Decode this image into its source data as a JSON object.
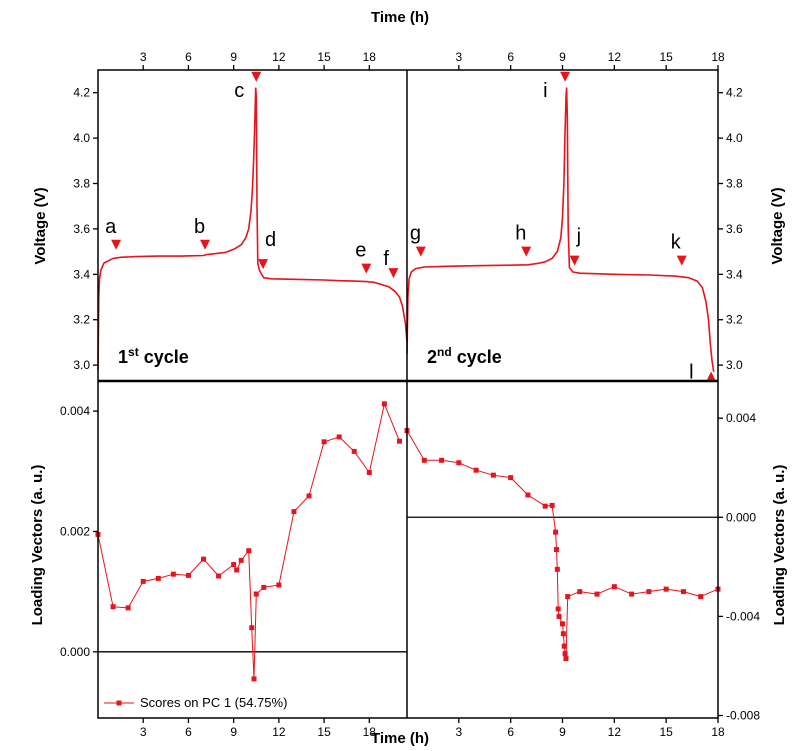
{
  "chart_data": {
    "type": "line",
    "shared": {
      "top_xlabel": "Time (h)",
      "bottom_xlabel": "Time (h)",
      "line_color": "#e8141b",
      "triangle_color": "#e8141b"
    },
    "panels": [
      {
        "id": "voltage-cycle1",
        "ylabel": "Voltage (V)",
        "cycle_label": {
          "num": "1",
          "sup": "st",
          "rest": " cycle"
        },
        "xlim": [
          0,
          20.5
        ],
        "ylim": [
          2.93,
          4.3
        ],
        "xticks": [
          3,
          6,
          9,
          12,
          15,
          18
        ],
        "yticks": [
          3.0,
          3.2,
          3.4,
          3.6,
          3.8,
          4.0,
          4.2
        ],
        "ytick_labels": [
          "3.0",
          "3.2",
          "3.4",
          "3.6",
          "3.8",
          "4.0",
          "4.2"
        ],
        "series": [
          {
            "x": [
              0,
              0.05,
              0.1,
              0.2,
              0.4,
              0.7,
              1.0,
              1.5,
              2.5,
              4,
              5.5,
              6.5,
              7.0,
              7.2,
              7.6,
              8.0,
              8.5,
              9.0,
              9.5,
              9.8,
              10.0,
              10.15,
              10.25,
              10.32,
              10.38,
              10.43,
              10.46,
              10.5,
              10.55,
              10.6,
              10.7,
              10.85,
              11.0,
              11.5,
              13,
              15,
              16,
              17,
              17.8,
              18.3,
              18.8,
              19.3,
              19.7,
              20.0,
              20.2,
              20.4,
              20.5
            ],
            "y": [
              2.98,
              3.3,
              3.38,
              3.42,
              3.45,
              3.46,
              3.47,
              3.475,
              3.478,
              3.48,
              3.48,
              3.482,
              3.483,
              3.487,
              3.49,
              3.493,
              3.497,
              3.51,
              3.53,
              3.56,
              3.6,
              3.68,
              3.78,
              3.9,
              4.02,
              4.14,
              4.22,
              4.18,
              3.7,
              3.45,
              3.42,
              3.4,
              3.385,
              3.38,
              3.378,
              3.375,
              3.372,
              3.37,
              3.368,
              3.365,
              3.355,
              3.345,
              3.325,
              3.3,
              3.26,
              3.18,
              3.1
            ]
          }
        ],
        "markers": [
          {
            "label": "a",
            "x": 1.2,
            "y": 3.53
          },
          {
            "label": "b",
            "x": 7.1,
            "y": 3.53
          },
          {
            "label": "c",
            "x": 10.5,
            "y": 4.27
          },
          {
            "label": "d",
            "x": 10.95,
            "y": 3.445
          },
          {
            "label": "e",
            "x": 17.8,
            "y": 3.425
          },
          {
            "label": "f",
            "x": 19.6,
            "y": 3.405
          }
        ]
      },
      {
        "id": "voltage-cycle2",
        "ylabel": "Voltage (V)",
        "cycle_label": {
          "num": "2",
          "sup": "nd",
          "rest": " cycle"
        },
        "xlim": [
          0,
          18
        ],
        "ylim": [
          2.93,
          4.3
        ],
        "xticks": [
          3,
          6,
          9,
          12,
          15,
          18
        ],
        "yticks": [
          3.0,
          3.2,
          3.4,
          3.6,
          3.8,
          4.0,
          4.2
        ],
        "ytick_labels": [
          "3.0",
          "3.2",
          "3.4",
          "3.6",
          "3.8",
          "4.0",
          "4.2"
        ],
        "series": [
          {
            "x": [
              0,
              0.05,
              0.12,
              0.25,
              0.5,
              1.0,
              2,
              4,
              6,
              7,
              7.5,
              8.0,
              8.4,
              8.7,
              8.9,
              9.0,
              9.08,
              9.14,
              9.2,
              9.24,
              9.28,
              9.33,
              9.4,
              9.6,
              10,
              12,
              14,
              15.5,
              16.3,
              16.8,
              17.1,
              17.3,
              17.45,
              17.55,
              17.65,
              17.75
            ],
            "y": [
              3.05,
              3.3,
              3.38,
              3.41,
              3.425,
              3.432,
              3.435,
              3.438,
              3.44,
              3.442,
              3.447,
              3.455,
              3.47,
              3.5,
              3.56,
              3.65,
              3.8,
              4.0,
              4.18,
              4.22,
              4.1,
              3.6,
              3.43,
              3.41,
              3.405,
              3.4,
              3.397,
              3.392,
              3.385,
              3.37,
              3.34,
              3.28,
              3.2,
              3.1,
              3.02,
              2.97
            ]
          }
        ],
        "markers": [
          {
            "label": "g",
            "x": 0.8,
            "y": 3.5
          },
          {
            "label": "h",
            "x": 6.9,
            "y": 3.5
          },
          {
            "label": "i",
            "x": 9.15,
            "y": 4.27
          },
          {
            "label": "j",
            "x": 9.7,
            "y": 3.46
          },
          {
            "label": "k",
            "x": 15.9,
            "y": 3.46
          },
          {
            "label": "l",
            "x": 17.6,
            "y": 2.95,
            "pointing": "up"
          }
        ]
      },
      {
        "id": "loading-cycle1",
        "ylabel": "Loading Vectors (a. u.)",
        "xlim": [
          0,
          20.5
        ],
        "ylim": [
          -0.0011,
          0.0045
        ],
        "xticks": [
          3,
          6,
          9,
          12,
          15,
          18
        ],
        "yticks": [
          0.0,
          0.002,
          0.004
        ],
        "ytick_labels": [
          "0.000",
          "0.002",
          "0.004"
        ],
        "zero_line": 0.0,
        "series": [
          {
            "name": "Scores on PC 1 (54.75%)",
            "x": [
              0,
              1,
              2,
              3,
              4,
              5,
              6,
              7,
              8,
              9,
              9.2,
              9.5,
              10,
              10.2,
              10.35,
              10.5,
              11,
              12,
              13,
              14,
              15,
              16,
              17,
              18,
              19,
              20
            ],
            "y": [
              0.00195,
              0.00075,
              0.00073,
              0.00117,
              0.00122,
              0.00129,
              0.00127,
              0.00154,
              0.00126,
              0.00145,
              0.00136,
              0.00152,
              0.00168,
              0.0004,
              -0.00045,
              0.00096,
              0.00107,
              0.00111,
              0.00233,
              0.00259,
              0.00349,
              0.00357,
              0.00333,
              0.00298,
              0.00412,
              0.0035
            ]
          }
        ],
        "legend": {
          "text": "Scores on PC 1 (54.75%)",
          "position": "bottom-left"
        }
      },
      {
        "id": "loading-cycle2",
        "ylabel": "Loading Vectors (a. u.)",
        "xlim": [
          0,
          18
        ],
        "ylim": [
          -0.0081,
          0.0055
        ],
        "xticks": [
          3,
          6,
          9,
          12,
          15,
          18
        ],
        "yticks": [
          -0.008,
          -0.004,
          0.0,
          0.004
        ],
        "ytick_labels": [
          "-0.008",
          "-0.004",
          "0.000",
          "0.004"
        ],
        "zero_line": 0.0,
        "series": [
          {
            "x": [
              0,
              1,
              2,
              3,
              4,
              5,
              6,
              7,
              8,
              8.4,
              8.6,
              8.65,
              8.7,
              8.75,
              8.8,
              9.0,
              9.05,
              9.1,
              9.15,
              9.2,
              9.3,
              10,
              11,
              12,
              13,
              14,
              15,
              16,
              17,
              18
            ],
            "y": [
              0.0035,
              0.0023,
              0.0023,
              0.0022,
              0.0019,
              0.0017,
              0.0016,
              0.0009,
              0.00045,
              0.00048,
              -0.0006,
              -0.0013,
              -0.0021,
              -0.0037,
              -0.004,
              -0.0043,
              -0.0047,
              -0.0052,
              -0.0055,
              -0.0057,
              -0.0032,
              -0.003,
              -0.0031,
              -0.0028,
              -0.0031,
              -0.003,
              -0.0029,
              -0.003,
              -0.0032,
              -0.0029
            ]
          }
        ]
      }
    ]
  }
}
